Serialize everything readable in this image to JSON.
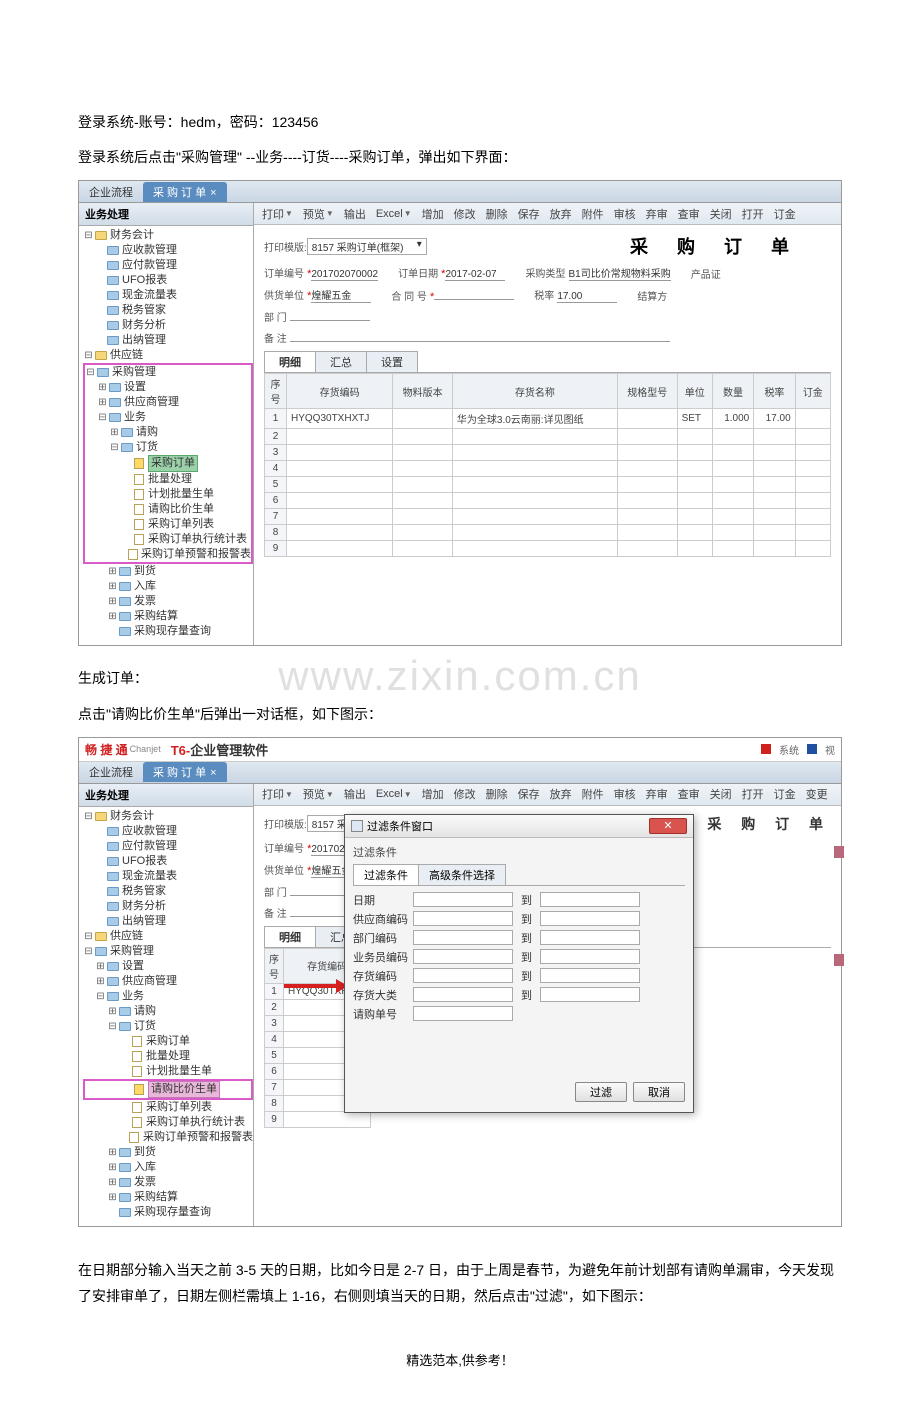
{
  "doc": {
    "line1_a": "登录系统-账号：",
    "line1_b": "hedm",
    "line1_c": "，密码：",
    "line1_d": "123456",
    "line2": "登录系统后点击\"采购管理\"   --业务----订货----采购订单，弹出如下界面：",
    "gen_title": "生成订单：",
    "gen_line": "点击\"请购比价生单\"后弹出一对话框，如下图示：",
    "para_bottom": "在日期部分输入当天之前 3-5 天的日期，比如今日是 2-7 日，由于上周是春节，为避免年前计划部有请购单漏审，今天发现了安排审单了，日期左侧栏需填上 1-16，右侧则填当天的日期，然后点击\"过滤\"，如下图示：",
    "footer": "精选范本,供参考！"
  },
  "watermark": "www.zixin.com.cn",
  "tabs": {
    "t1": "企业流程",
    "t2": "采 购 订 单"
  },
  "sidebar_title": "业务处理",
  "toolbar": [
    "打印",
    "预览",
    "输出",
    "Excel",
    "增加",
    "修改",
    "删除",
    "保存",
    "放弃",
    "附件",
    "审核",
    "弃审",
    "查审",
    "关闭",
    "打开",
    "订金"
  ],
  "toolbar2_extra": "变更",
  "form": {
    "title": "采 购 订 单",
    "print_tpl_label": "打印模版:",
    "print_tpl_val": "8157 采购订单(框架)",
    "order_no_label": "订单编号",
    "order_no": "201702070002",
    "order_date_label": "订单日期",
    "order_date": "2017-02-07",
    "purchase_type_label": "采购类型",
    "purchase_type": "B1司比价常规物料采购",
    "product_label": "产品证",
    "supplier_label": "供货单位",
    "supplier": "煌耀五金",
    "contract_label": "合 同 号",
    "tax_label": "税率",
    "tax": "17.00",
    "settle_label": "结算方",
    "dept_label": "部  门",
    "remark_label": "备  注"
  },
  "subtabs": {
    "t1": "明细",
    "t2": "汇总",
    "t3": "设置"
  },
  "grid_headers": [
    "序号",
    "存货编码",
    "物料版本",
    "存货名称",
    "规格型号",
    "单位",
    "数量",
    "税率",
    "订金"
  ],
  "grid_row1": {
    "code": "HYQQ30TXHXTJ",
    "name": "华为全球3.0云南丽:详见图纸",
    "unit": "SET",
    "qty": "1.000",
    "tax": "17.00"
  },
  "tree1": [
    {
      "ind": 0,
      "exp": "-",
      "icon": "folder",
      "label": "财务会计"
    },
    {
      "ind": 1,
      "exp": "",
      "icon": "bfolder",
      "label": "应收款管理"
    },
    {
      "ind": 1,
      "exp": "",
      "icon": "bfolder",
      "label": "应付款管理"
    },
    {
      "ind": 1,
      "exp": "",
      "icon": "bfolder",
      "label": "UFO报表"
    },
    {
      "ind": 1,
      "exp": "",
      "icon": "bfolder",
      "label": "现金流量表"
    },
    {
      "ind": 1,
      "exp": "",
      "icon": "bfolder",
      "label": "税务管家"
    },
    {
      "ind": 1,
      "exp": "",
      "icon": "bfolder",
      "label": "财务分析"
    },
    {
      "ind": 1,
      "exp": "",
      "icon": "bfolder",
      "label": "出纳管理"
    },
    {
      "ind": 0,
      "exp": "-",
      "icon": "folder",
      "label": "供应链"
    },
    {
      "ind": 0,
      "exp": "-",
      "icon": "bfolder",
      "label": "采购管理",
      "hl": true
    },
    {
      "ind": 1,
      "exp": "+",
      "icon": "bfolder",
      "label": "设置",
      "hl": true
    },
    {
      "ind": 1,
      "exp": "+",
      "icon": "bfolder",
      "label": "供应商管理",
      "hl": true
    },
    {
      "ind": 1,
      "exp": "-",
      "icon": "bfolder",
      "label": "业务",
      "hl": true
    },
    {
      "ind": 2,
      "exp": "+",
      "icon": "bfolder",
      "label": "请购",
      "hl": true
    },
    {
      "ind": 2,
      "exp": "-",
      "icon": "bfolder",
      "label": "订货",
      "hl": true
    },
    {
      "ind": 3,
      "exp": "",
      "icon": "filesel",
      "label": "采购订单",
      "sel": 1,
      "hl": true
    },
    {
      "ind": 3,
      "exp": "",
      "icon": "file",
      "label": "批量处理",
      "hl": true
    },
    {
      "ind": 3,
      "exp": "",
      "icon": "file",
      "label": "计划批量生单",
      "hl": true
    },
    {
      "ind": 3,
      "exp": "",
      "icon": "file",
      "label": "请购比价生单",
      "hl": true
    },
    {
      "ind": 3,
      "exp": "",
      "icon": "file",
      "label": "采购订单列表",
      "hl": true
    },
    {
      "ind": 3,
      "exp": "",
      "icon": "file",
      "label": "采购订单执行统计表",
      "hl": true
    },
    {
      "ind": 3,
      "exp": "",
      "icon": "file",
      "label": "采购订单预警和报警表",
      "hl": true
    },
    {
      "ind": 2,
      "exp": "+",
      "icon": "bfolder",
      "label": "到货"
    },
    {
      "ind": 2,
      "exp": "+",
      "icon": "bfolder",
      "label": "入库"
    },
    {
      "ind": 2,
      "exp": "+",
      "icon": "bfolder",
      "label": "发票"
    },
    {
      "ind": 2,
      "exp": "+",
      "icon": "bfolder",
      "label": "采购结算"
    },
    {
      "ind": 2,
      "exp": "",
      "icon": "bfolder",
      "label": "采购现存量查询"
    }
  ],
  "tree2": [
    {
      "ind": 0,
      "exp": "-",
      "icon": "folder",
      "label": "财务会计"
    },
    {
      "ind": 1,
      "exp": "",
      "icon": "bfolder",
      "label": "应收款管理"
    },
    {
      "ind": 1,
      "exp": "",
      "icon": "bfolder",
      "label": "应付款管理"
    },
    {
      "ind": 1,
      "exp": "",
      "icon": "bfolder",
      "label": "UFO报表"
    },
    {
      "ind": 1,
      "exp": "",
      "icon": "bfolder",
      "label": "现金流量表"
    },
    {
      "ind": 1,
      "exp": "",
      "icon": "bfolder",
      "label": "税务管家"
    },
    {
      "ind": 1,
      "exp": "",
      "icon": "bfolder",
      "label": "财务分析"
    },
    {
      "ind": 1,
      "exp": "",
      "icon": "bfolder",
      "label": "出纳管理"
    },
    {
      "ind": 0,
      "exp": "-",
      "icon": "folder",
      "label": "供应链"
    },
    {
      "ind": 0,
      "exp": "-",
      "icon": "bfolder",
      "label": "采购管理"
    },
    {
      "ind": 1,
      "exp": "+",
      "icon": "bfolder",
      "label": "设置"
    },
    {
      "ind": 1,
      "exp": "+",
      "icon": "bfolder",
      "label": "供应商管理"
    },
    {
      "ind": 1,
      "exp": "-",
      "icon": "bfolder",
      "label": "业务"
    },
    {
      "ind": 2,
      "exp": "+",
      "icon": "bfolder",
      "label": "请购"
    },
    {
      "ind": 2,
      "exp": "-",
      "icon": "bfolder",
      "label": "订货"
    },
    {
      "ind": 3,
      "exp": "",
      "icon": "file",
      "label": "采购订单"
    },
    {
      "ind": 3,
      "exp": "",
      "icon": "file",
      "label": "批量处理"
    },
    {
      "ind": 3,
      "exp": "",
      "icon": "file",
      "label": "计划批量生单"
    },
    {
      "ind": 3,
      "exp": "",
      "icon": "filesel",
      "label": "请购比价生单",
      "sel": 2,
      "hlrow": true
    },
    {
      "ind": 3,
      "exp": "",
      "icon": "file",
      "label": "采购订单列表"
    },
    {
      "ind": 3,
      "exp": "",
      "icon": "file",
      "label": "采购订单执行统计表"
    },
    {
      "ind": 3,
      "exp": "",
      "icon": "file",
      "label": "采购订单预警和报警表"
    },
    {
      "ind": 2,
      "exp": "+",
      "icon": "bfolder",
      "label": "到货"
    },
    {
      "ind": 2,
      "exp": "+",
      "icon": "bfolder",
      "label": "入库"
    },
    {
      "ind": 2,
      "exp": "+",
      "icon": "bfolder",
      "label": "发票"
    },
    {
      "ind": 2,
      "exp": "+",
      "icon": "bfolder",
      "label": "采购结算"
    },
    {
      "ind": 2,
      "exp": "",
      "icon": "bfolder",
      "label": "采购现存量查询"
    }
  ],
  "app": {
    "logo_brand": "畅 捷 通",
    "logo_sub": "Chanjet",
    "logo_title_prefix": "T6-",
    "logo_title_rest": "企业管理软件",
    "right1": "系统",
    "right2": "视"
  },
  "dialog": {
    "title_icon": "⊞",
    "title": "过滤条件窗口",
    "group": "过滤条件",
    "tab1": "过滤条件",
    "tab2": "高级条件选择",
    "rows": [
      "日期",
      "供应商编码",
      "部门编码",
      "业务员编码",
      "存货编码",
      "存货大类",
      "请购单号"
    ],
    "to": "到",
    "btn_filter": "过滤",
    "btn_cancel": "取消"
  },
  "form2": {
    "title_partial": "采  购  订  单",
    "print_tpl_label": "打印模版:",
    "print_tpl_val": "8157 采购订单",
    "order_no_label": "订单编号",
    "order_no": "20170207",
    "supplier_label": "供货单位",
    "supplier": "煌耀五金",
    "dept_label": "部  门",
    "remark_label": "备  注"
  },
  "subtabs2": {
    "t1": "明细",
    "t2": "汇总"
  },
  "grid2_headers": [
    "序号",
    "存货编码"
  ],
  "grid2_row1_code": "HYQQ30TXHXTJ",
  "colors": {
    "page_bg": "#ffffff",
    "text": "#000000",
    "tab_active_bg": "#5b8cc0",
    "highlight_border": "#d85bc8",
    "selected_green": "#9bd1a8",
    "selected_pink": "#e8b8d8",
    "arrow_red": "#d62020",
    "dialog_close_bg": "#d9534f",
    "watermark": "#e0e0e0",
    "side_marker": "#b8687a"
  }
}
